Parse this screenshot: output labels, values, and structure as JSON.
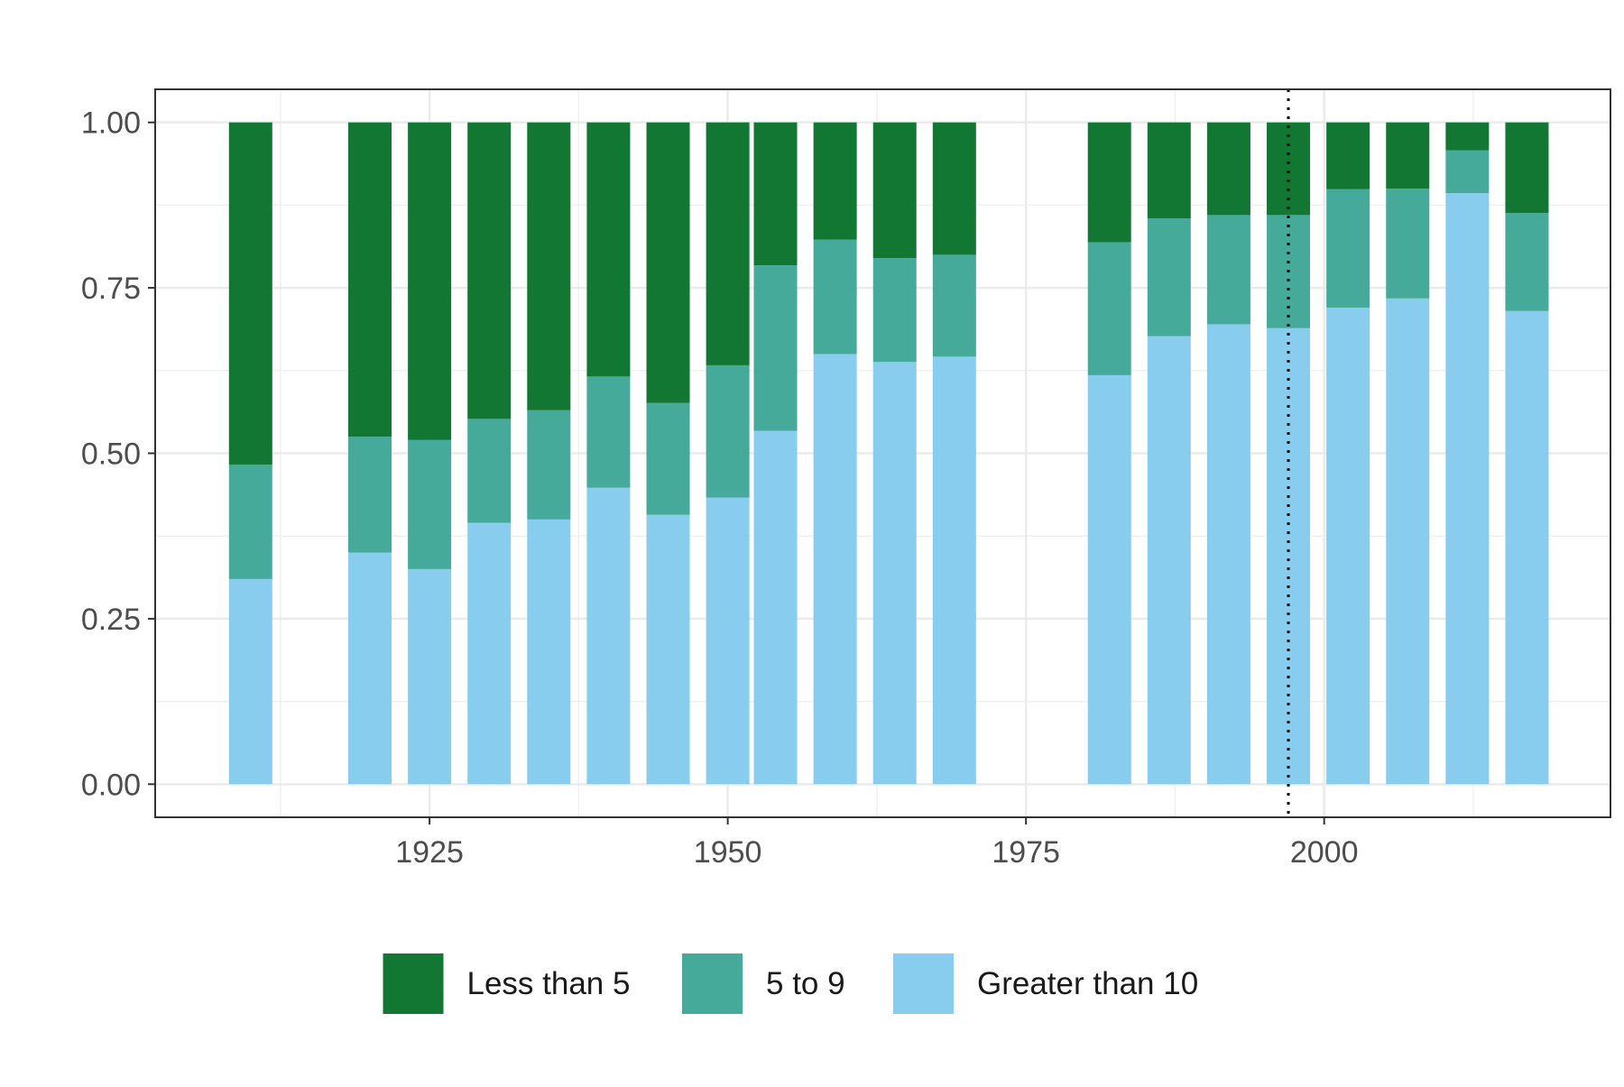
{
  "chart_data": {
    "type": "bar",
    "stacked": true,
    "x": [
      1910,
      1920,
      1925,
      1930,
      1935,
      1940,
      1945,
      1950,
      1954,
      1959,
      1964,
      1969,
      1982,
      1987,
      1992,
      1997,
      2002,
      2007,
      2012,
      2017
    ],
    "series": [
      {
        "name": "Greater than 10",
        "color": "#89CDEE",
        "values": [
          0.31,
          0.35,
          0.325,
          0.395,
          0.4,
          0.448,
          0.407,
          0.433,
          0.534,
          0.65,
          0.638,
          0.646,
          0.618,
          0.677,
          0.695,
          0.689,
          0.72,
          0.734,
          0.893,
          0.715
        ]
      },
      {
        "name": "5 to 9",
        "color": "#45AA99",
        "values": [
          0.173,
          0.175,
          0.195,
          0.157,
          0.165,
          0.168,
          0.169,
          0.2,
          0.25,
          0.173,
          0.157,
          0.154,
          0.201,
          0.178,
          0.165,
          0.171,
          0.179,
          0.166,
          0.065,
          0.148
        ]
      },
      {
        "name": "Less than 5",
        "color": "#117733",
        "values": [
          0.517,
          0.475,
          0.48,
          0.448,
          0.435,
          0.384,
          0.424,
          0.367,
          0.216,
          0.177,
          0.205,
          0.2,
          0.181,
          0.145,
          0.14,
          0.14,
          0.101,
          0.1,
          0.042,
          0.137
        ]
      }
    ],
    "x_ticks": [
      1925,
      1950,
      1975,
      2000
    ],
    "y_ticks": [
      "0.00",
      "0.25",
      "0.50",
      "0.75",
      "1.00"
    ],
    "xlim": [
      1902,
      2024
    ],
    "ylim": [
      -0.05,
      1.05
    ],
    "vline_x": 1997,
    "vline_style": "dotted",
    "grid": true,
    "legend_position": "bottom",
    "title": "",
    "xlabel": "",
    "ylabel": ""
  }
}
